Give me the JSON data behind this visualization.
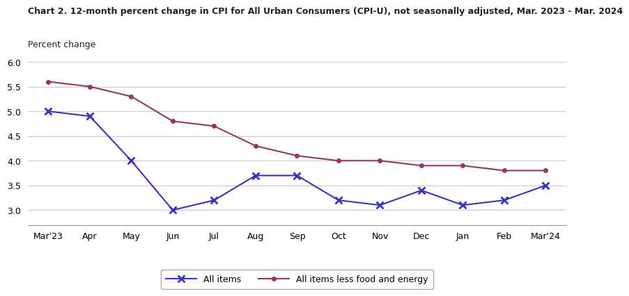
{
  "title": "Chart 2. 12-month percent change in CPI for All Urban Consumers (CPI-U), not seasonally adjusted, Mar. 2023 - Mar. 2024",
  "ylabel": "Percent change",
  "categories": [
    "Mar'23",
    "Apr",
    "May",
    "Jun",
    "Jul",
    "Aug",
    "Sep",
    "Oct",
    "Nov",
    "Dec",
    "Jan",
    "Feb",
    "Mar'24"
  ],
  "all_items": [
    5.0,
    4.9,
    4.0,
    3.0,
    3.2,
    3.7,
    3.7,
    3.2,
    3.1,
    3.4,
    3.1,
    3.2,
    3.5
  ],
  "less_food_energy": [
    5.6,
    5.5,
    5.3,
    4.8,
    4.7,
    4.3,
    4.1,
    4.0,
    4.0,
    3.9,
    3.9,
    3.8,
    3.8
  ],
  "all_items_color": "#3333cc",
  "less_food_energy_color": "#993366",
  "ylim_min": 2.7,
  "ylim_max": 6.0,
  "yticks": [
    3.0,
    3.5,
    4.0,
    4.5,
    5.0,
    5.5,
    6.0
  ],
  "legend_label_all": "All items",
  "legend_label_less": "All items less food and energy",
  "bg_color": "#ffffff",
  "grid_color": "#cccccc",
  "title_fontsize": 9,
  "label_fontsize": 9,
  "tick_fontsize": 9
}
